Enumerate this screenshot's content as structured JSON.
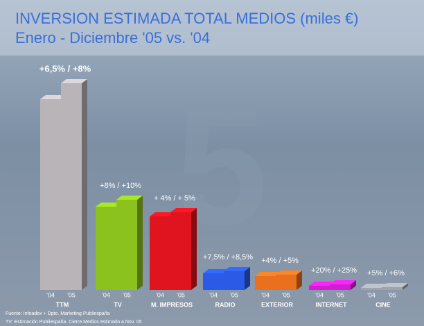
{
  "chart_data": {
    "type": "bar3d",
    "title": "INVERSION ESTIMADA TOTAL MEDIOS (miles €)",
    "subtitle": "Enero - Diciembre '05 vs. '04",
    "categories": [
      "TTM",
      "TV",
      "M. IMPRESOS",
      "RADIO",
      "EXTERIOR",
      "INTERNET",
      "CINE"
    ],
    "colors": [
      "#b8b4b8",
      "#8cc21e",
      "#e0141e",
      "#2a5ae6",
      "#e8701e",
      "#d21ed2",
      "#a0a4aa"
    ],
    "series": [
      {
        "name": "'04",
        "values": [
          275,
          120,
          106,
          24,
          20,
          6,
          3
        ]
      },
      {
        "name": "'05",
        "values": [
          298,
          130,
          112,
          27,
          22,
          8,
          4
        ]
      }
    ],
    "annotations": [
      "+6,5% / +8%",
      "+8% / +10%",
      "+ 4% / + 5%",
      "+7,5% / +8,5%",
      "+4% / +5%",
      "+20% / +25%",
      "+5% / +6%"
    ],
    "ylim": [
      0,
      300
    ],
    "footnotes": [
      "Fuente: Infoadex + Dpto. Marketing Publiespaña",
      "TV: Estimación Publiespaña. Cierre Medios estimado a Nov. 05"
    ]
  }
}
